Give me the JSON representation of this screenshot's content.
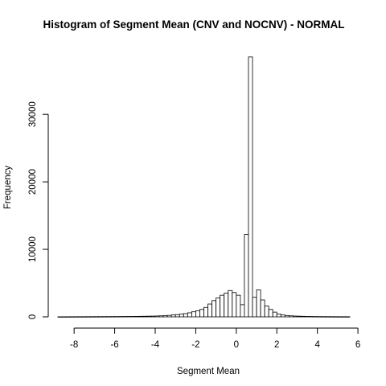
{
  "chart_data": {
    "type": "histogram",
    "title": "Histogram of Segment Mean (CNV and NOCNV) - NORMAL",
    "xlabel": "Segment Mean",
    "ylabel": "Frequency",
    "bin_width": 0.2,
    "x_start": -8.8,
    "xlim": [
      -8.8,
      5.6
    ],
    "ylim": [
      0,
      38600
    ],
    "xticks": [
      -8,
      -6,
      -4,
      -2,
      0,
      2,
      4,
      6
    ],
    "yticks": [
      0,
      10000,
      20000,
      30000
    ],
    "values": [
      10,
      10,
      15,
      15,
      20,
      20,
      25,
      25,
      30,
      30,
      35,
      35,
      40,
      40,
      45,
      50,
      55,
      60,
      65,
      70,
      80,
      90,
      100,
      110,
      130,
      150,
      180,
      220,
      280,
      330,
      400,
      480,
      600,
      750,
      900,
      1100,
      1400,
      1900,
      2400,
      2800,
      3200,
      3500,
      3900,
      3600,
      3200,
      1800,
      12200,
      38500,
      2900,
      4000,
      2500,
      1600,
      1100,
      700,
      400,
      280,
      200,
      150,
      120,
      100,
      80,
      65,
      55,
      45,
      40,
      35,
      30,
      28,
      25,
      22,
      20,
      18
    ]
  }
}
